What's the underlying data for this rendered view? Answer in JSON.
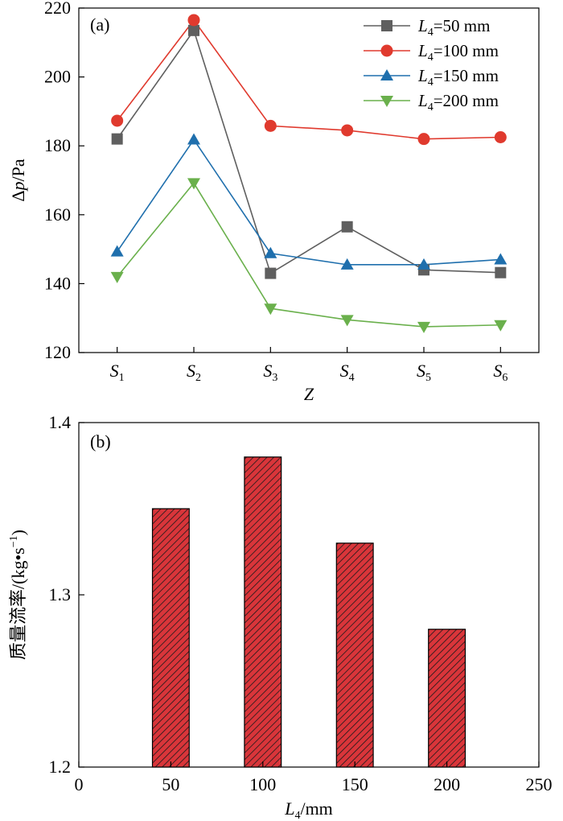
{
  "chart_data": [
    {
      "type": "line",
      "panel_label": "(a)",
      "categories": [
        "S1",
        "S2",
        "S3",
        "S4",
        "S5",
        "S6"
      ],
      "category_parts": [
        {
          "main": "S",
          "sub": "1"
        },
        {
          "main": "S",
          "sub": "2"
        },
        {
          "main": "S",
          "sub": "3"
        },
        {
          "main": "S",
          "sub": "4"
        },
        {
          "main": "S",
          "sub": "5"
        },
        {
          "main": "S",
          "sub": "6"
        }
      ],
      "xlabel": "Z",
      "ylabel": "Δp/Pa",
      "ylabel_parts": {
        "pre": "Δ",
        "var": "p",
        "post": "/Pa"
      },
      "ylim": [
        120,
        220
      ],
      "yticks": [
        120,
        140,
        160,
        180,
        200,
        220
      ],
      "grid": false,
      "legend_position": "top-right",
      "series": [
        {
          "name": "L4=50 mm",
          "legend_parts": {
            "var": "L",
            "sub": "4",
            "rest": "=50 mm"
          },
          "color": "#5f5f5f",
          "marker": "square",
          "values": [
            182,
            213.5,
            143,
            156.5,
            144,
            143.2
          ]
        },
        {
          "name": "L4=100 mm",
          "legend_parts": {
            "var": "L",
            "sub": "4",
            "rest": "=100 mm"
          },
          "color": "#e03a2e",
          "marker": "circle",
          "values": [
            187.3,
            216.5,
            185.8,
            184.5,
            182,
            182.5
          ]
        },
        {
          "name": "L4=150 mm",
          "legend_parts": {
            "var": "L",
            "sub": "4",
            "rest": "=150 mm"
          },
          "color": "#1f6fad",
          "marker": "triangle-up",
          "values": [
            149.3,
            181.8,
            148.8,
            145.5,
            145.5,
            147
          ]
        },
        {
          "name": "L4=200 mm",
          "legend_parts": {
            "var": "L",
            "sub": "4",
            "rest": "=200 mm"
          },
          "color": "#6ab04c",
          "marker": "triangle-down",
          "values": [
            142,
            169.2,
            132.8,
            129.5,
            127.5,
            128
          ]
        }
      ]
    },
    {
      "type": "bar",
      "panel_label": "(b)",
      "x": [
        50,
        100,
        150,
        200
      ],
      "values": [
        1.35,
        1.38,
        1.33,
        1.28
      ],
      "bar_width": 20,
      "xlabel": "L4/mm",
      "xlabel_parts": {
        "var": "L",
        "sub": "4",
        "rest": "/mm"
      },
      "ylabel": "质量流率/(kg·s-1)",
      "ylabel_parts": {
        "main": "质量流率/(kg•s",
        "sup": "−1",
        "close": ")"
      },
      "xlim": [
        0,
        250
      ],
      "xticks": [
        0,
        50,
        100,
        150,
        200,
        250
      ],
      "ylim": [
        1.2,
        1.4
      ],
      "yticks": [
        1.2,
        1.3,
        1.4
      ],
      "ytick_labels": [
        "1.2",
        "1.3",
        "1.4"
      ],
      "grid": false,
      "bar_color": "#d9353a",
      "bar_hatch": "diagonal"
    }
  ]
}
